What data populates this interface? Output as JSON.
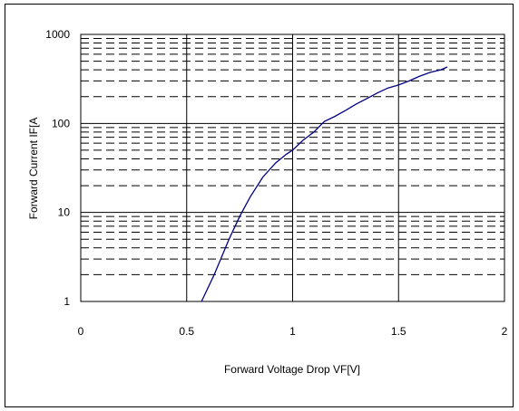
{
  "chart_data": {
    "type": "line",
    "title": "",
    "xlabel": "Forward Voltage Drop VF[V]",
    "ylabel": "Forward Current IF[A",
    "x_scale": "linear",
    "y_scale": "log",
    "xlim": [
      0,
      2
    ],
    "ylim": [
      1,
      1000
    ],
    "x_ticks": [
      "0",
      "0.5",
      "1",
      "1.5",
      "2"
    ],
    "y_ticks": [
      "1",
      "10",
      "100",
      "1000"
    ],
    "grid": {
      "major": "solid",
      "minor": "dashed"
    },
    "legend": "none",
    "line_color": "#000080",
    "series": [
      {
        "x": [
          0.57,
          0.63,
          0.7,
          0.75,
          0.8,
          0.86,
          0.92,
          0.97,
          1.0,
          1.05,
          1.1,
          1.15,
          1.2,
          1.25,
          1.3,
          1.35,
          1.4,
          1.45,
          1.5,
          1.55,
          1.6,
          1.65,
          1.7,
          1.73
        ],
        "y": [
          1,
          2,
          5,
          9,
          15,
          25,
          36,
          45,
          50,
          65,
          80,
          105,
          120,
          140,
          165,
          190,
          220,
          250,
          270,
          300,
          340,
          375,
          400,
          430
        ]
      }
    ]
  }
}
